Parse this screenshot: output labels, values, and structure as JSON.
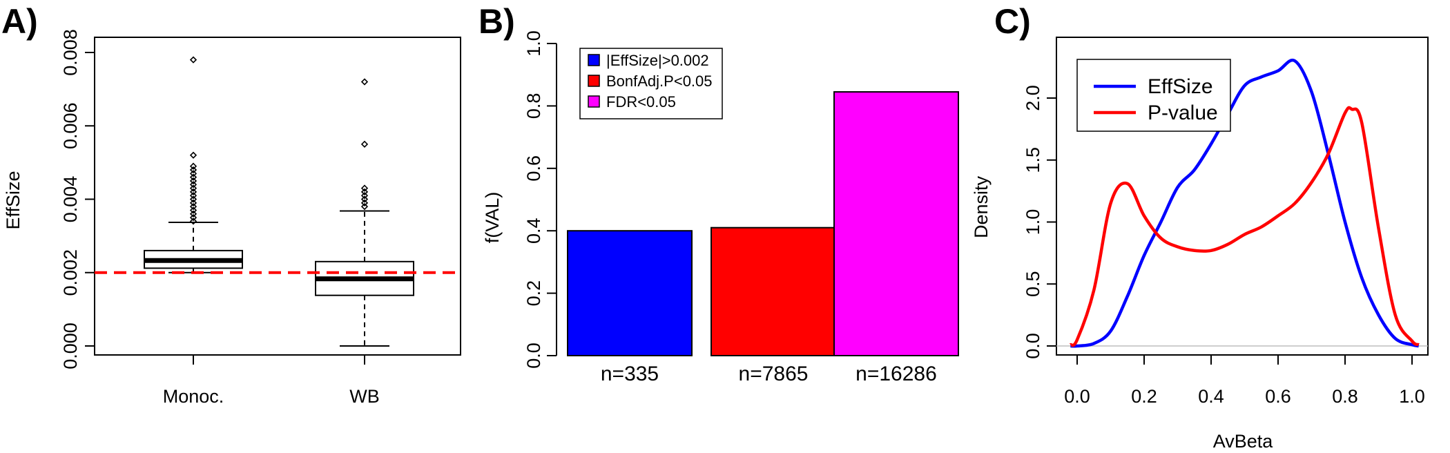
{
  "colors": {
    "blue": "#0000ff",
    "red": "#ff0000",
    "magenta": "#ff00ff",
    "dashed_red": "#ff0000"
  },
  "chart_data": [
    {
      "panel": "A)",
      "type": "box",
      "ylabel": "EffSize",
      "xlabel": "",
      "ylim": [
        0,
        0.008
      ],
      "yticks": [
        "0.000",
        "0.002",
        "0.004",
        "0.006",
        "0.008"
      ],
      "categories": [
        "Monoc.",
        "WB"
      ],
      "boxes": [
        {
          "label": "Monoc.",
          "whisker_low": 0.002,
          "q1": 0.00212,
          "median": 0.00233,
          "q3": 0.0026,
          "whisker_high": 0.00337,
          "outliers": [
            0.0078,
            0.0052,
            0.0049,
            0.0048,
            0.0047,
            0.0046,
            0.0045,
            0.0044,
            0.0043,
            0.0042,
            0.0041,
            0.004,
            0.0039,
            0.0038,
            0.0037,
            0.0036,
            0.0035,
            0.0034
          ]
        },
        {
          "label": "WB",
          "whisker_low": 0.0,
          "q1": 0.00138,
          "median": 0.00183,
          "q3": 0.0023,
          "whisker_high": 0.00368,
          "outliers": [
            0.0072,
            0.0055,
            0.0043,
            0.0042,
            0.0041,
            0.004,
            0.0039,
            0.0038
          ]
        }
      ],
      "reference_line": 0.002
    },
    {
      "panel": "B)",
      "type": "bar",
      "ylabel": "f(VAL)",
      "ylim": [
        0,
        1.0
      ],
      "yticks": [
        "0.0",
        "0.2",
        "0.4",
        "0.6",
        "0.8",
        "1.0"
      ],
      "categories": [
        "n=335",
        "n=7865",
        "n=16286"
      ],
      "values": [
        0.4,
        0.41,
        0.845
      ],
      "legend": [
        "|EffSize|>0.002",
        "BonfAdj.P<0.05",
        "FDR<0.05"
      ],
      "legend_position": "top-left"
    },
    {
      "panel": "C)",
      "type": "line",
      "xlabel": "AvBeta",
      "ylabel": "Density",
      "xlim": [
        -0.03,
        1.03
      ],
      "ylim": [
        0,
        2.3
      ],
      "xticks": [
        "0.0",
        "0.2",
        "0.4",
        "0.6",
        "0.8",
        "1.0"
      ],
      "yticks": [
        "0.0",
        "0.5",
        "1.0",
        "1.5",
        "2.0"
      ],
      "legend_position": "top-left",
      "series": [
        {
          "name": "EffSize",
          "x": [
            -0.02,
            0.0,
            0.05,
            0.1,
            0.15,
            0.2,
            0.25,
            0.3,
            0.35,
            0.4,
            0.45,
            0.5,
            0.55,
            0.6,
            0.65,
            0.7,
            0.75,
            0.8,
            0.85,
            0.9,
            0.95,
            1.0,
            1.02
          ],
          "y": [
            0.0,
            0.0,
            0.02,
            0.12,
            0.4,
            0.73,
            1.0,
            1.28,
            1.42,
            1.63,
            1.87,
            2.1,
            2.17,
            2.22,
            2.3,
            2.05,
            1.55,
            1.0,
            0.55,
            0.25,
            0.06,
            0.01,
            0.0
          ]
        },
        {
          "name": "P-value",
          "x": [
            -0.02,
            0.0,
            0.05,
            0.1,
            0.15,
            0.2,
            0.25,
            0.3,
            0.35,
            0.4,
            0.45,
            0.5,
            0.55,
            0.6,
            0.65,
            0.7,
            0.75,
            0.8,
            0.82,
            0.85,
            0.9,
            0.95,
            1.0,
            1.02
          ],
          "y": [
            0.01,
            0.05,
            0.45,
            1.15,
            1.31,
            1.05,
            0.87,
            0.8,
            0.77,
            0.77,
            0.82,
            0.9,
            0.96,
            1.05,
            1.15,
            1.32,
            1.55,
            1.88,
            1.91,
            1.8,
            0.95,
            0.25,
            0.04,
            0.01
          ]
        }
      ]
    }
  ]
}
